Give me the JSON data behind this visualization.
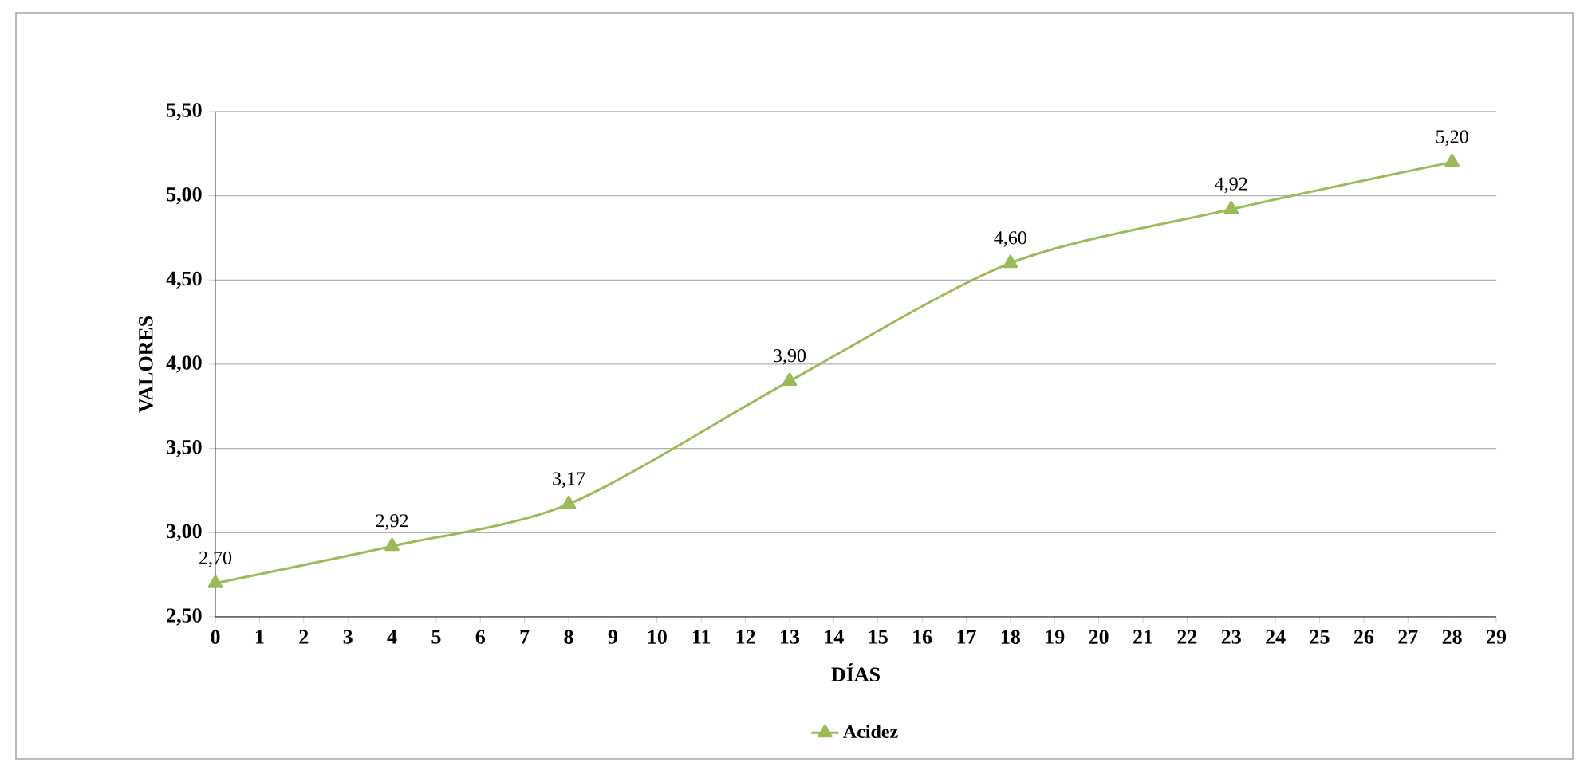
{
  "chart_data": {
    "type": "line",
    "xlabel": "DÍAS",
    "ylabel": "VALORES",
    "x": [
      0,
      4,
      8,
      13,
      18,
      23,
      28
    ],
    "series": [
      {
        "name": "Acidez",
        "color": "#9bbb59",
        "values": [
          2.7,
          2.92,
          3.17,
          3.9,
          4.6,
          4.92,
          5.2
        ],
        "value_labels": [
          "2,70",
          "2,92",
          "3,17",
          "3,90",
          "4,60",
          "4,92",
          "5,20"
        ]
      }
    ],
    "xlim": [
      0,
      29
    ],
    "xticks": [
      0,
      1,
      2,
      3,
      4,
      5,
      6,
      7,
      8,
      9,
      10,
      11,
      12,
      13,
      14,
      15,
      16,
      17,
      18,
      19,
      20,
      21,
      22,
      23,
      24,
      25,
      26,
      27,
      28,
      29
    ],
    "ylim": [
      2.5,
      5.5
    ],
    "yticks": [
      {
        "value": 2.5,
        "label": "2,50"
      },
      {
        "value": 3.0,
        "label": "3,00"
      },
      {
        "value": 3.5,
        "label": "3,50"
      },
      {
        "value": 4.0,
        "label": "4,00"
      },
      {
        "value": 4.5,
        "label": "4,50"
      },
      {
        "value": 5.0,
        "label": "5,00"
      },
      {
        "value": 5.5,
        "label": "5,50"
      }
    ],
    "grid": "y",
    "legend": "bottom",
    "marker": "triangle",
    "line_style": "solid"
  }
}
